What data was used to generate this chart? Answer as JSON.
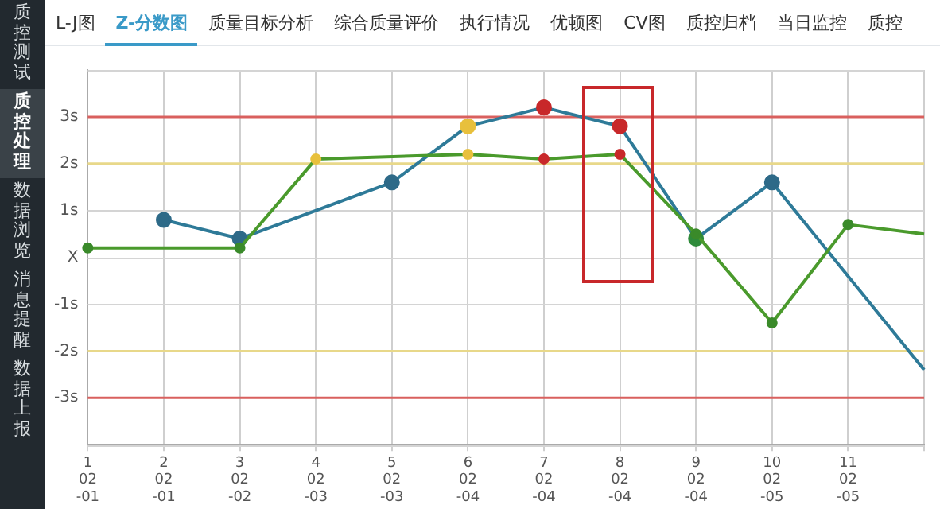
{
  "chart_data": [
    {
      "type": "other",
      "annotations": [
        "质控测试",
        "质控处理",
        "数据浏览",
        "消息提醒",
        "数据上报"
      ]
    },
    {
      "type": "other",
      "annotations": [
        "L-J图",
        "Z-分数图",
        "质量目标分析",
        "综合质量评价",
        "执行情况",
        "优顿图",
        "CV图",
        "质控归档",
        "当日监控",
        "质控"
      ]
    },
    {
      "type": "line",
      "categories": [
        "1\n02\n-01",
        "2\n02\n-01",
        "3\n02\n-02",
        "4\n02\n-03",
        "5\n02\n-03",
        "6\n02\n-04",
        "7\n02\n-04",
        "8\n02\n-04",
        "9\n02\n-04",
        "10\n02\n-05",
        "11\n02\n-05",
        null
      ],
      "ylim": [
        -4,
        4
      ],
      "yticks": [
        {
          "value": -4,
          "label": null
        },
        {
          "value": -3,
          "label": "-3s"
        },
        {
          "value": -2,
          "label": "-2s"
        },
        {
          "value": -1,
          "label": "-1s"
        },
        {
          "value": 0,
          "label": "X"
        },
        {
          "value": 1,
          "label": "1s"
        },
        {
          "value": 2,
          "label": "2s"
        },
        {
          "value": 3,
          "label": "3s"
        },
        {
          "value": 4,
          "label": null
        }
      ],
      "grid": true,
      "legend": false,
      "marker": "circle",
      "line_style": "solid",
      "ref_lines": [
        {
          "axis": "y",
          "value": 3,
          "color": "#d9605e"
        },
        {
          "axis": "y",
          "value": 2,
          "color": "#e8d88a"
        },
        {
          "axis": "y",
          "value": -2,
          "color": "#e8d88a"
        },
        {
          "axis": "y",
          "value": -3,
          "color": "#d9605e"
        }
      ],
      "series": [
        {
          "color": "#2e7a98",
          "values": [
            null,
            0.8,
            0.4,
            null,
            1.6,
            2.8,
            3.2,
            2.8,
            0.4,
            1.6,
            null,
            -2.4
          ],
          "colors": [
            null,
            "#2e6a88",
            "#2e6a88",
            null,
            "#2e6a88",
            "#e8c03c",
            "#c8282a",
            "#c8282a",
            "#2e8a3a",
            "#2e6a88",
            null,
            null
          ]
        },
        {
          "color": "#4a9a2c",
          "values": [
            0.2,
            null,
            0.2,
            2.1,
            null,
            2.2,
            2.1,
            2.2,
            0.5,
            -1.4,
            0.7,
            0.5
          ],
          "colors": [
            "#3a8a2a",
            null,
            "#3a8a2a",
            "#e8c03c",
            null,
            "#e8c03c",
            "#c8282a",
            "#c8282a",
            "#3a8a2a",
            "#3a8a2a",
            "#3a8a2a",
            null
          ]
        }
      ]
    }
  ]
}
